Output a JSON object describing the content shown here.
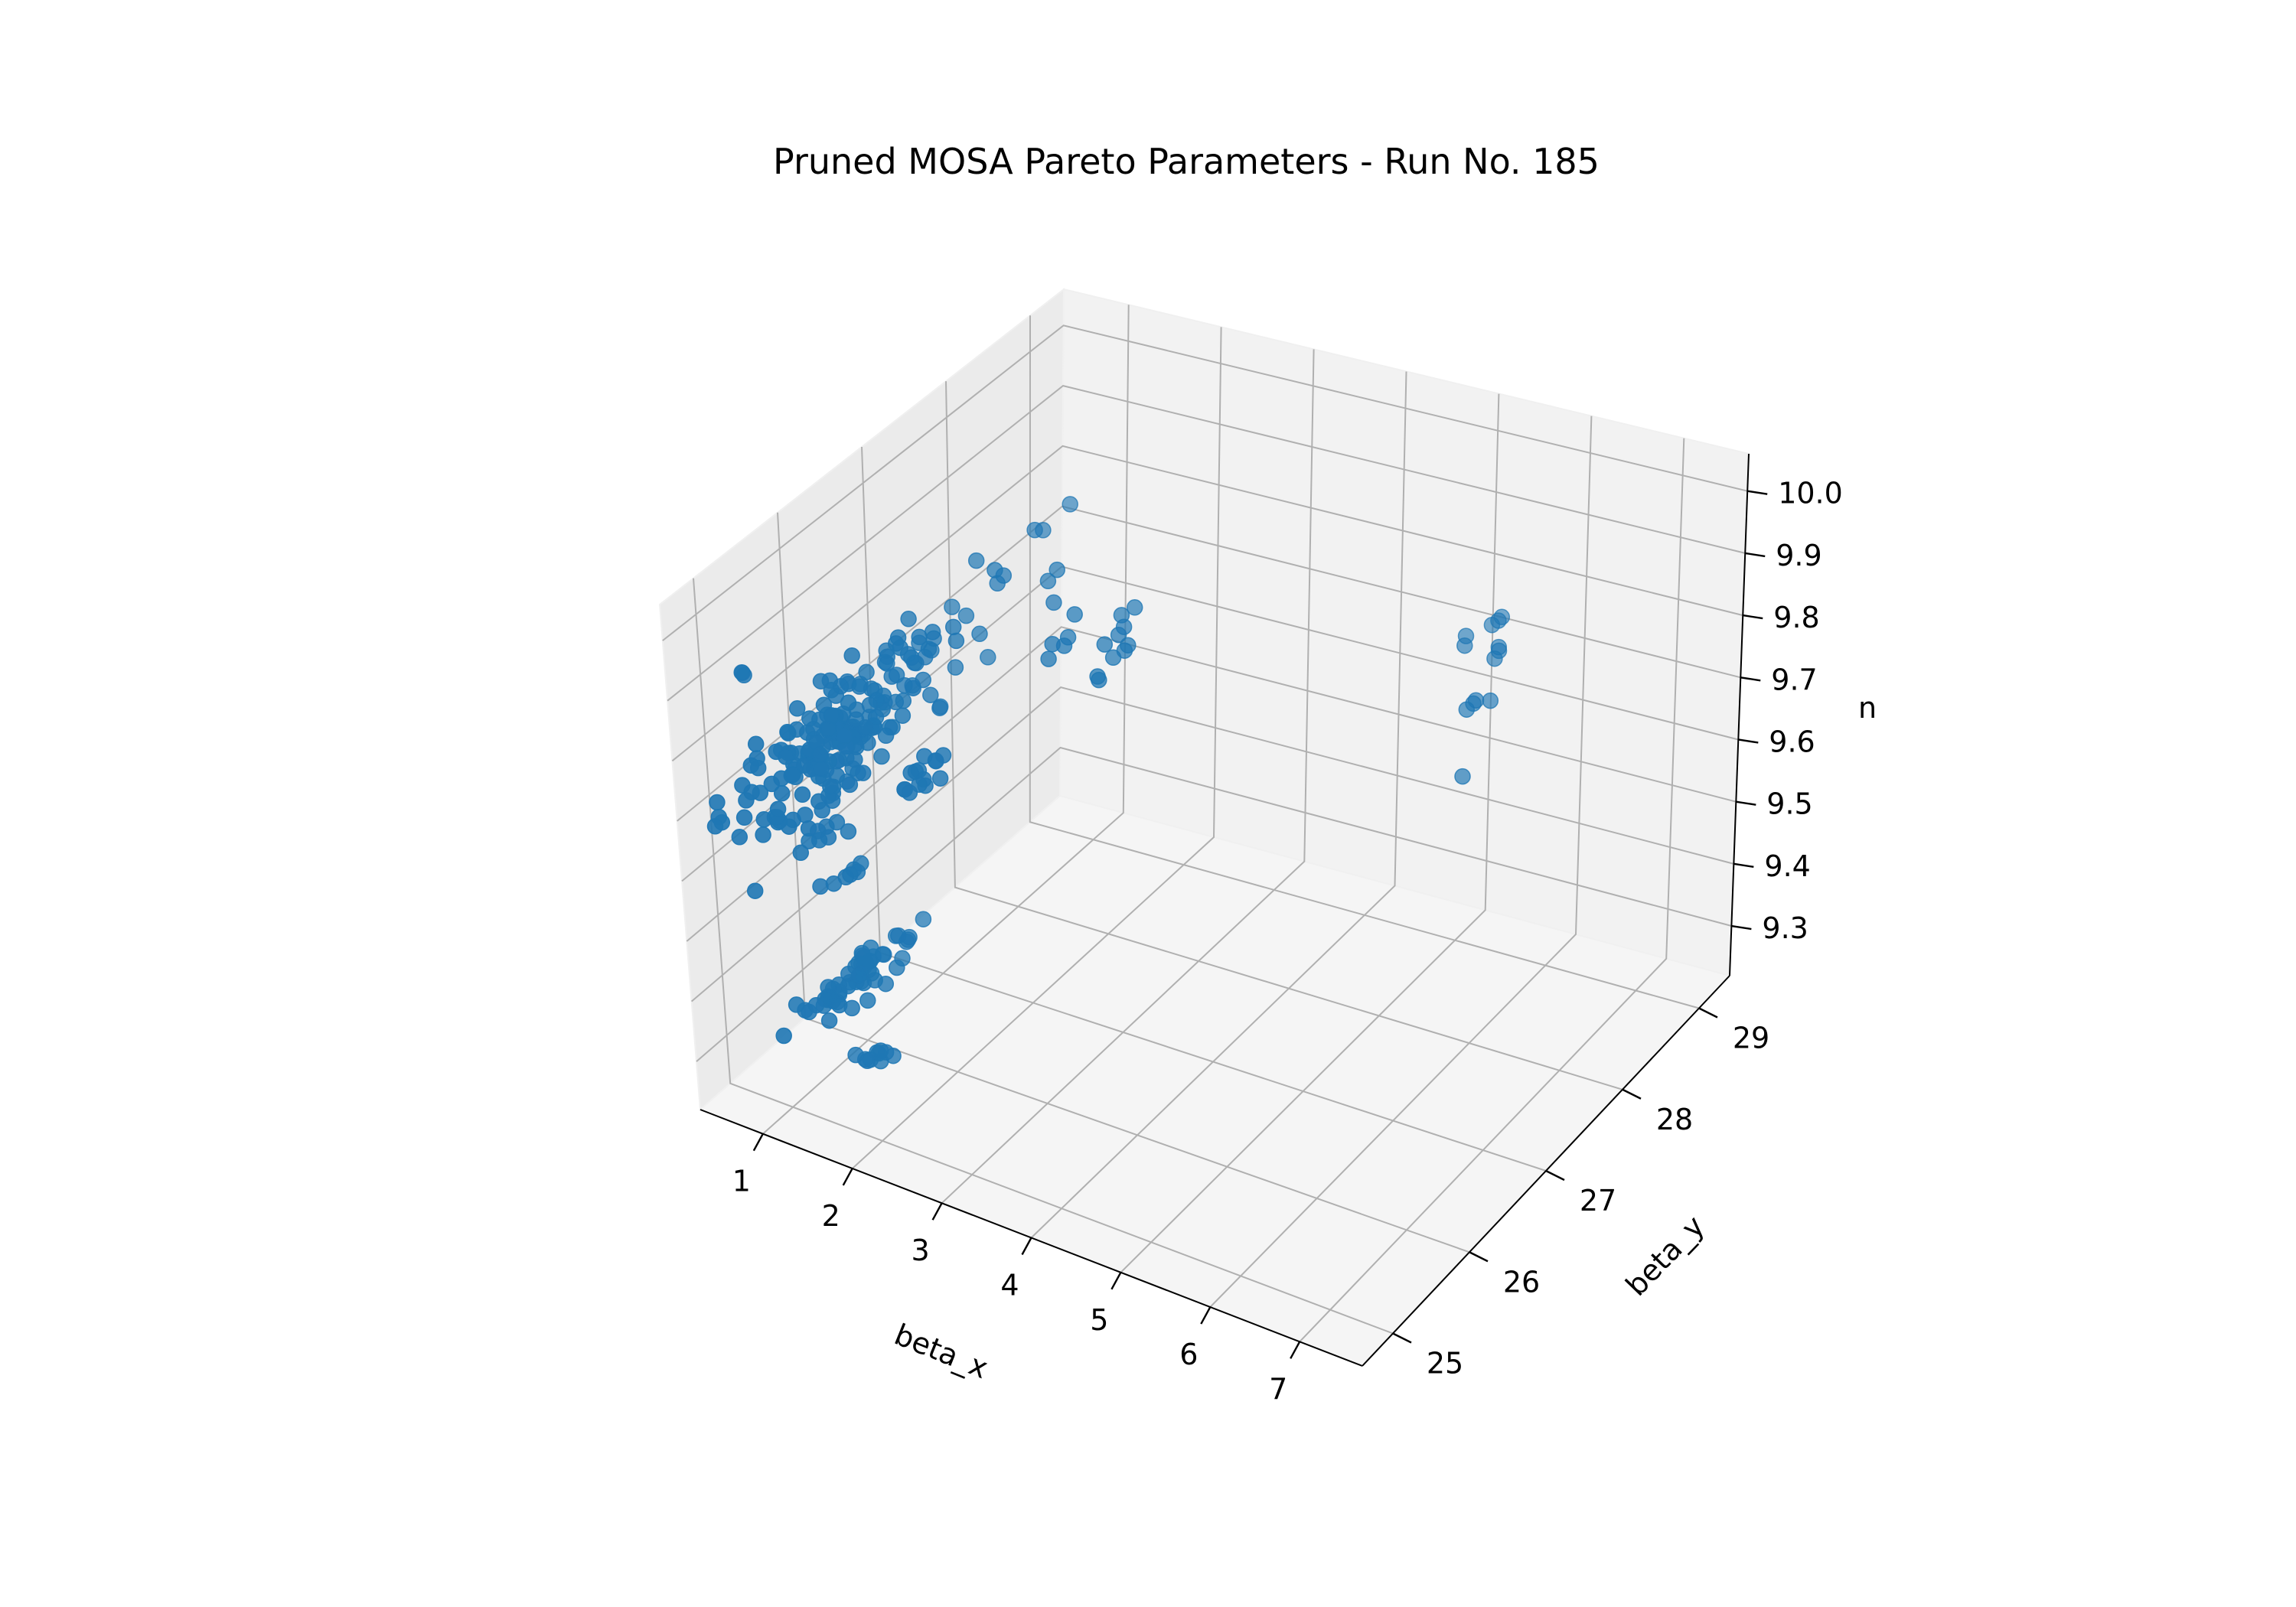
{
  "chart_data": {
    "type": "scatter",
    "title": "Pruned MOSA Pareto Parameters - Run No. 185",
    "xlabel": "beta_x",
    "ylabel": "beta_y",
    "zlabel": "n",
    "xticks": [
      "1",
      "2",
      "3",
      "4",
      "5",
      "6",
      "7"
    ],
    "yticks": [
      "25",
      "26",
      "27",
      "28",
      "29"
    ],
    "zticks": [
      "9.3",
      "9.4",
      "9.5",
      "9.6",
      "9.7",
      "9.8",
      "9.9",
      "10.0"
    ],
    "xlim": [
      0.3,
      7.7
    ],
    "ylim": [
      24.6,
      29.4
    ],
    "zlim": [
      9.22,
      10.06
    ],
    "grid": true,
    "marker_color": "#1f77b4",
    "series": [
      {
        "clusters": [
          {
            "x": 0.5,
            "y": 25.3,
            "z": 9.88,
            "spread": [
              0.02,
              0.05,
              0.004
            ],
            "count": 3
          },
          {
            "x": 1.4,
            "y": 25.4,
            "z": 9.4,
            "spread": [
              0.1,
              0.35,
              0.012
            ],
            "count": 55
          },
          {
            "x": 1.5,
            "y": 25.5,
            "z": 9.28,
            "spread": [
              0.03,
              0.08,
              0.015
            ],
            "count": 10
          },
          {
            "x": 1.55,
            "y": 25.3,
            "z": 9.61,
            "spread": [
              0.05,
              0.2,
              0.006
            ],
            "count": 7
          },
          {
            "x": 1.6,
            "y": 25.0,
            "z": 9.7,
            "spread": [
              0.05,
              0.2,
              0.008
            ],
            "count": 8
          },
          {
            "x": 1.7,
            "y": 25.1,
            "z": 9.77,
            "spread": [
              0.05,
              0.2,
              0.01
            ],
            "count": 7
          },
          {
            "x": 1.7,
            "y": 25.2,
            "z": 9.86,
            "spread": [
              0.18,
              0.65,
              0.035
            ],
            "count": 170
          },
          {
            "x": 2.5,
            "y": 25.2,
            "z": 9.82,
            "spread": [
              0.03,
              0.1,
              0.008
            ],
            "count": 6
          },
          {
            "x": 2.6,
            "y": 25.3,
            "z": 9.85,
            "spread": [
              0.05,
              0.15,
              0.01
            ],
            "count": 8
          },
          {
            "x": 2.2,
            "y": 26.2,
            "z": 9.99,
            "spread": [
              0.2,
              0.9,
              0.012
            ],
            "count": 28
          },
          {
            "x": 3.2,
            "y": 26.4,
            "z": 9.97,
            "spread": [
              0.08,
              0.25,
              0.005
            ],
            "count": 5
          },
          {
            "x": 3.5,
            "y": 26.6,
            "z": 9.97,
            "spread": [
              0.05,
              0.15,
              0.006
            ],
            "count": 5
          },
          {
            "x": 3.7,
            "y": 26.4,
            "z": 9.96,
            "spread": [
              0.05,
              0.15,
              0.006
            ],
            "count": 5
          },
          {
            "x": 6.5,
            "y": 27.6,
            "z": 9.97,
            "spread": [
              0.06,
              0.15,
              0.005
            ],
            "count": 5
          },
          {
            "x": 6.85,
            "y": 27.5,
            "z": 9.97,
            "spread": [
              0.03,
              0.06,
              0.003
            ],
            "count": 3
          },
          {
            "x": 7.0,
            "y": 27.1,
            "z": 9.95,
            "spread": [
              0.04,
              0.1,
              0.005
            ],
            "count": 4
          },
          {
            "x": 7.1,
            "y": 26.8,
            "z": 9.87,
            "spread": [
              0.01,
              0.02,
              0.002
            ],
            "count": 1
          }
        ]
      }
    ]
  }
}
